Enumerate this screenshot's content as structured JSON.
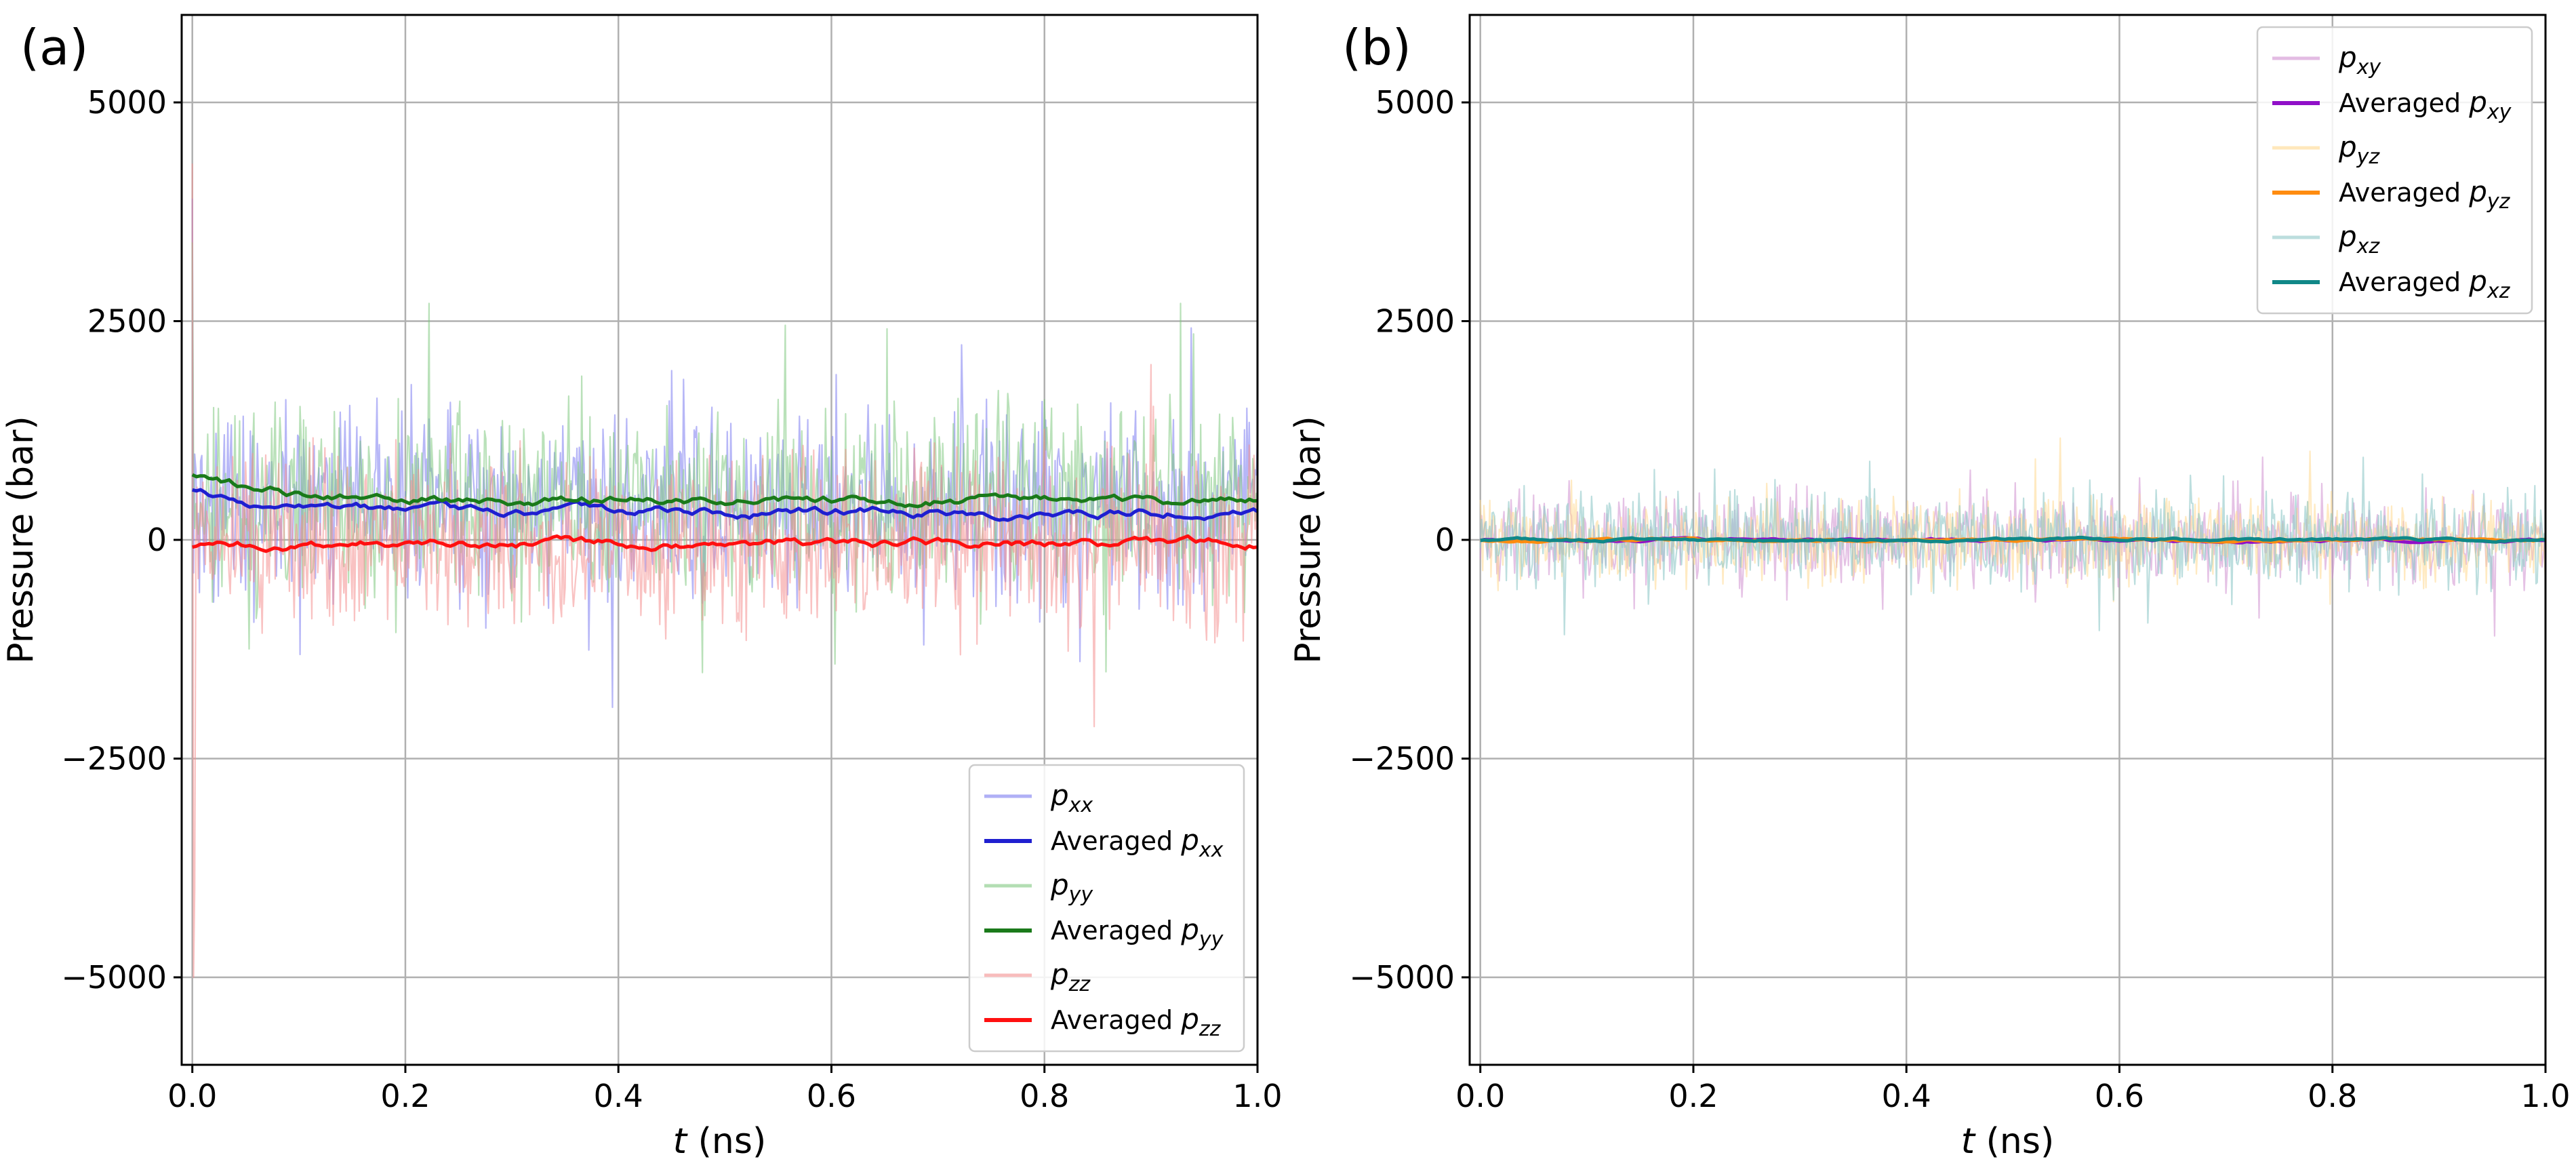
{
  "figure": {
    "colors": {
      "background": "#ffffff",
      "grid": "#b0b0b0",
      "frame": "#000000",
      "legend_edge": "#cccccc"
    }
  },
  "chart_data": [
    {
      "type": "line",
      "panel_label": "(a)",
      "xlabel_italic": "t",
      "xlabel_rest": " (ns)",
      "ylabel": "Pressure (bar)",
      "xlim": [
        -0.01,
        1.0
      ],
      "ylim": [
        -6000,
        6000
      ],
      "xticks": [
        0.0,
        0.2,
        0.4,
        0.6,
        0.8,
        1.0
      ],
      "xtick_labels": [
        "0.0",
        "0.2",
        "0.4",
        "0.6",
        "0.8",
        "1.0"
      ],
      "yticks": [
        -5000,
        -2500,
        0,
        2500,
        5000
      ],
      "ytick_labels": [
        "−5000",
        "−2500",
        "0",
        "2500",
        "5000"
      ],
      "grid": true,
      "legend_position": "lower-right",
      "series": [
        {
          "name": "p_xx",
          "legend_prefix": "",
          "legend_main": "p",
          "legend_sub": "xx",
          "kind": "raw",
          "color": "#7b7bf0",
          "alpha": 0.55,
          "mean": 380,
          "amplitude": 1500,
          "initial_spike": 3900
        },
        {
          "name": "Averaged p_xx",
          "legend_prefix": "Averaged ",
          "legend_main": "p",
          "legend_sub": "xx",
          "kind": "averaged",
          "color": "#1f1fd0",
          "mean": 320,
          "start": 600
        },
        {
          "name": "p_yy",
          "legend_prefix": "",
          "legend_main": "p",
          "legend_sub": "yy",
          "kind": "raw",
          "color": "#80c880",
          "alpha": 0.55,
          "mean": 460,
          "amplitude": 1550,
          "initial_spike": 3400
        },
        {
          "name": "Averaged p_yy",
          "legend_prefix": "Averaged ",
          "legend_main": "p",
          "legend_sub": "yy",
          "kind": "averaged",
          "color": "#1a7a1a",
          "mean": 450,
          "start": 750
        },
        {
          "name": "p_zz",
          "legend_prefix": "",
          "legend_main": "p",
          "legend_sub": "zz",
          "kind": "raw",
          "color": "#f49090",
          "alpha": 0.55,
          "mean": -30,
          "amplitude": 1500,
          "initial_spike": 4300,
          "initial_dip": -5000
        },
        {
          "name": "Averaged p_zz",
          "legend_prefix": "Averaged ",
          "legend_main": "p",
          "legend_sub": "zz",
          "kind": "averaged",
          "color": "#ff1010",
          "mean": -40,
          "start": -80
        }
      ]
    },
    {
      "type": "line",
      "panel_label": "(b)",
      "xlabel_italic": "t",
      "xlabel_rest": " (ns)",
      "ylabel": "Pressure (bar)",
      "xlim": [
        -0.01,
        1.0
      ],
      "ylim": [
        -6000,
        6000
      ],
      "xticks": [
        0.0,
        0.2,
        0.4,
        0.6,
        0.8,
        1.0
      ],
      "xtick_labels": [
        "0.0",
        "0.2",
        "0.4",
        "0.6",
        "0.8",
        "1.0"
      ],
      "yticks": [
        -5000,
        -2500,
        0,
        2500,
        5000
      ],
      "ytick_labels": [
        "−5000",
        "−2500",
        "0",
        "2500",
        "5000"
      ],
      "grid": true,
      "legend_position": "upper-right",
      "series": [
        {
          "name": "p_xy",
          "legend_prefix": "",
          "legend_main": "p",
          "legend_sub": "xy",
          "kind": "raw",
          "color": "#d08fd0",
          "alpha": 0.55,
          "mean": 0,
          "amplitude": 700
        },
        {
          "name": "Averaged p_xy",
          "legend_prefix": "Averaged ",
          "legend_main": "p",
          "legend_sub": "xy",
          "kind": "averaged",
          "color": "#9010c8",
          "mean": 0,
          "start": 0
        },
        {
          "name": "p_yz",
          "legend_prefix": "",
          "legend_main": "p",
          "legend_sub": "yz",
          "kind": "raw",
          "color": "#ffd890",
          "alpha": 0.55,
          "mean": 0,
          "amplitude": 700
        },
        {
          "name": "Averaged p_yz",
          "legend_prefix": "Averaged ",
          "legend_main": "p",
          "legend_sub": "yz",
          "kind": "averaged",
          "color": "#ff8c10",
          "mean": 0,
          "start": 0
        },
        {
          "name": "p_xz",
          "legend_prefix": "",
          "legend_main": "p",
          "legend_sub": "xz",
          "kind": "raw",
          "color": "#90c8c8",
          "alpha": 0.6,
          "mean": 0,
          "amplitude": 760
        },
        {
          "name": "Averaged p_xz",
          "legend_prefix": "Averaged ",
          "legend_main": "p",
          "legend_sub": "xz",
          "kind": "averaged",
          "color": "#108888",
          "mean": 0,
          "start": 0
        }
      ]
    }
  ]
}
